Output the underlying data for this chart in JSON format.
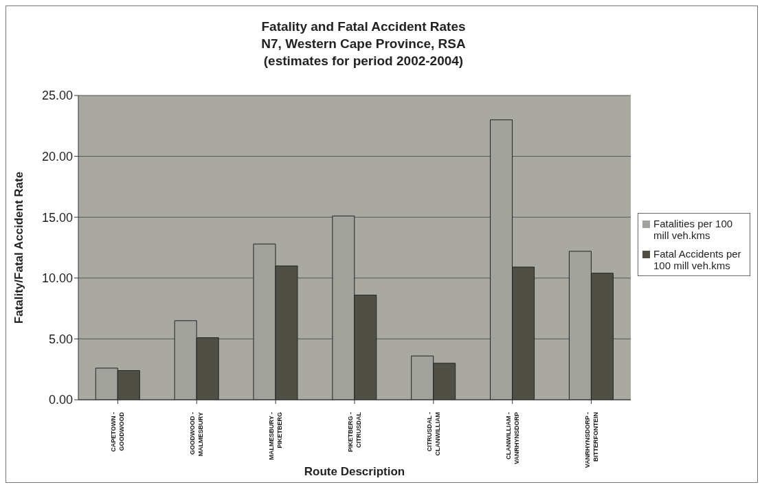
{
  "chart_data": {
    "type": "bar",
    "title": "Fatality and Fatal Accident Rates\nN7, Western Cape Province, RSA\n(estimates for period 2002-2004)",
    "xlabel": "Route Description",
    "ylabel": "Fatality/Fatal Accident Rate",
    "categories": [
      "CAPETOWN -\nGOODWOOD",
      "GOODWOOD -\nMALMESBURY",
      "MALMESBURY -\nPIKETBERG",
      "PIKETBERG -\nCITRUSDAL",
      "CITRUSDAL -\nCLANWILLIAM",
      "CLANWILLIAM -\nVANRHYNSDORP",
      "VANRHYNSDORP -\nBITTERFONTEIN"
    ],
    "series": [
      {
        "name": "Fatalities per 100 mill veh.kms",
        "color": "#a2a29c",
        "values": [
          2.6,
          6.5,
          12.8,
          15.1,
          3.6,
          23.0,
          12.2
        ]
      },
      {
        "name": "Fatal Accidents per 100 mill veh.kms",
        "color": "#4f4f46",
        "values": [
          2.4,
          5.1,
          11.0,
          8.6,
          3.0,
          10.9,
          10.4
        ]
      }
    ],
    "ylim": [
      0,
      25
    ],
    "yticks": [
      {
        "value": 0,
        "label": "0.00"
      },
      {
        "value": 5,
        "label": "5.00"
      },
      {
        "value": 10,
        "label": "10.00"
      },
      {
        "value": 15,
        "label": "15.00"
      },
      {
        "value": 20,
        "label": "20.00"
      },
      {
        "value": 25,
        "label": "25.00"
      }
    ],
    "grid": "y",
    "legend": "right"
  }
}
